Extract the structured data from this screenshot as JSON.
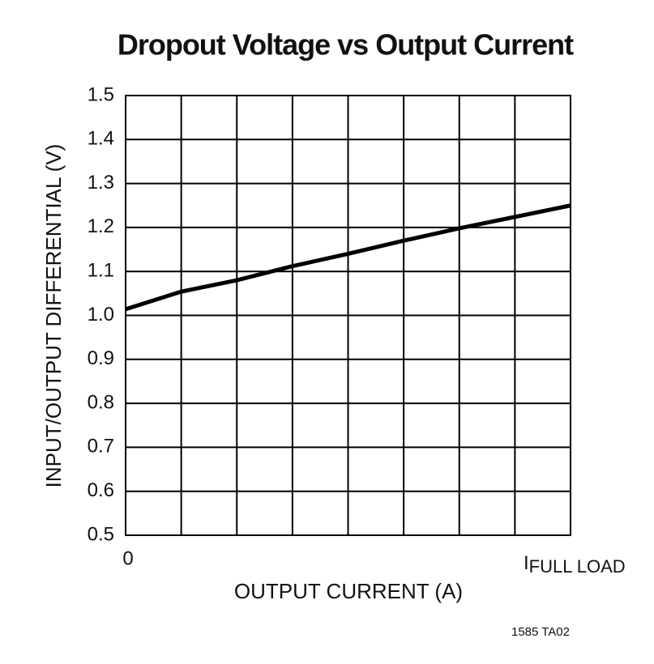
{
  "chart_data": {
    "type": "line",
    "title": "Dropout Voltage vs Output Current",
    "x_label": "OUTPUT CURRENT (A)",
    "y_label": "INPUT/OUTPUT DIFFERENTIAL (V)",
    "x": [
      0,
      0.125,
      0.25,
      0.375,
      0.5,
      0.625,
      0.75,
      0.875,
      1
    ],
    "series": [
      {
        "name": "Dropout voltage",
        "color": "#000000",
        "values": [
          1.014,
          1.054,
          1.08,
          1.112,
          1.14,
          1.17,
          1.198,
          1.224,
          1.25
        ]
      }
    ],
    "xlim": [
      0,
      1
    ],
    "xticks": [
      0,
      {
        "value": 0.125,
        "label": null
      },
      {
        "value": 0.25,
        "label": null
      },
      {
        "value": 0.375,
        "label": null
      },
      {
        "value": 0.5,
        "label": null
      },
      {
        "value": 0.625,
        "label": null
      },
      {
        "value": 0.75,
        "label": null
      },
      {
        "value": 0.875,
        "label": null
      },
      {
        "value": 1,
        "label": "I",
        "label_subscript": "FULL LOAD"
      }
    ],
    "ylim": [
      0.5,
      1.5
    ],
    "yticks": [
      0.5,
      0.6,
      0.7,
      0.8,
      0.9,
      {
        "value": 1,
        "label": "1.0"
      },
      1.1,
      1.2,
      1.3,
      1.4,
      1.5
    ],
    "grid": true,
    "note": "1585 TA02"
  }
}
